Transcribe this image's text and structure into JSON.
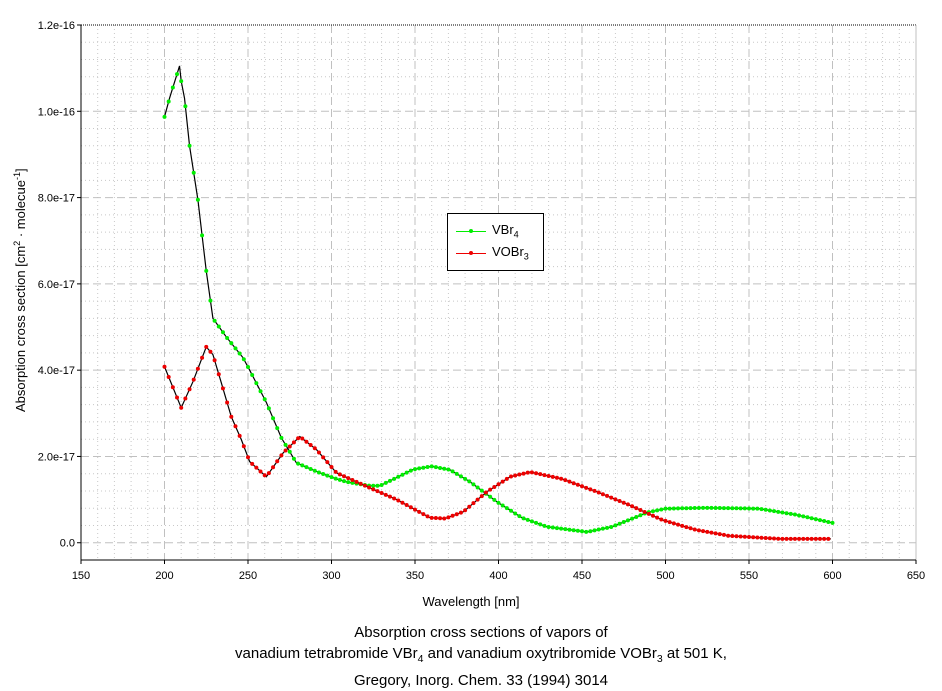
{
  "chart_data": {
    "type": "line",
    "xlabel": "Wavelength [nm]",
    "ylabel": {
      "pre": "Absorption cross section [cm",
      "sup1": "2",
      "mid": " · molecue",
      "sup2": "-1",
      "post": "]"
    },
    "xlim": [
      150,
      650
    ],
    "ylim": [
      -4e-18,
      1.2e-16
    ],
    "xticks": [
      "150",
      "200",
      "250",
      "300",
      "350",
      "400",
      "450",
      "500",
      "550",
      "600",
      "650"
    ],
    "xtick_values": [
      150,
      200,
      250,
      300,
      350,
      400,
      450,
      500,
      550,
      600,
      650
    ],
    "yticks": [
      "0.0",
      "2.0e-17",
      "4.0e-17",
      "6.0e-17",
      "8.0e-17",
      "1.0e-16",
      "1.2e-16"
    ],
    "ytick_values": [
      0,
      2e-17,
      4e-17,
      6e-17,
      8e-17,
      1e-16,
      1.2e-16
    ],
    "grid": true,
    "legend_placement": "center",
    "series": [
      {
        "name": "VBr4",
        "label": "VBr",
        "sub": "4",
        "color": "#00ee00",
        "x": [
          200,
          203,
          207,
          209,
          210,
          212,
          215,
          220,
          225,
          229,
          237,
          247,
          251,
          261,
          270,
          279,
          293,
          303,
          309,
          323,
          329,
          349,
          360,
          371,
          383,
          399,
          414,
          429,
          453,
          468,
          489,
          500,
          524,
          556,
          578,
          600
        ],
        "y": [
          9.87e-17,
          1.03e-16,
          1.08e-16,
          1.105e-16,
          1.07e-16,
          1.03e-16,
          9.2e-17,
          7.95e-17,
          6.3e-17,
          5.2e-17,
          4.77e-17,
          4.29e-17,
          4e-17,
          3.25e-17,
          2.43e-17,
          1.85e-17,
          1.62e-17,
          1.48e-17,
          1.41e-17,
          1.32e-17,
          1.32e-17,
          1.7e-17,
          1.77e-17,
          1.69e-17,
          1.41e-17,
          9.5e-18,
          5.8e-18,
          3.7e-18,
          2.5e-18,
          3.7e-18,
          7e-18,
          7.9e-18,
          8.1e-18,
          7.9e-18,
          6.5e-18,
          4.6e-18
        ]
      },
      {
        "name": "VOBr3",
        "label": "VOBr",
        "sub": "3",
        "color": "#ee0000",
        "x": [
          200,
          210,
          217,
          225,
          229,
          234,
          240,
          246,
          251,
          261,
          271,
          281,
          291,
          303,
          319,
          339,
          359,
          368,
          379,
          393,
          407,
          419,
          438,
          459,
          478,
          498,
          518,
          538,
          568,
          599
        ],
        "y": [
          4.08e-17,
          3.13e-17,
          3.73e-17,
          4.54e-17,
          4.36e-17,
          3.71e-17,
          2.92e-17,
          2.39e-17,
          1.88e-17,
          1.53e-17,
          2.08e-17,
          2.46e-17,
          2.16e-17,
          1.62e-17,
          1.34e-17,
          1e-17,
          5.8e-18,
          5.6e-18,
          7.2e-18,
          1.18e-17,
          1.53e-17,
          1.64e-17,
          1.48e-17,
          1.18e-17,
          8.8e-18,
          5.3e-18,
          3e-18,
          1.6e-18,
          9e-19,
          9e-19
        ]
      }
    ]
  },
  "caption": {
    "line1": "Absorption cross sections of vapors of",
    "line2a": "vanadium tetrabromide VBr",
    "line2sub1": "4",
    "line2b": " and vanadium oxytribromide VOBr",
    "line2sub2": "3",
    "line2c": " at 501 K,",
    "line3": "Gregory, Inorg. Chem. 33 (1994) 3014"
  }
}
